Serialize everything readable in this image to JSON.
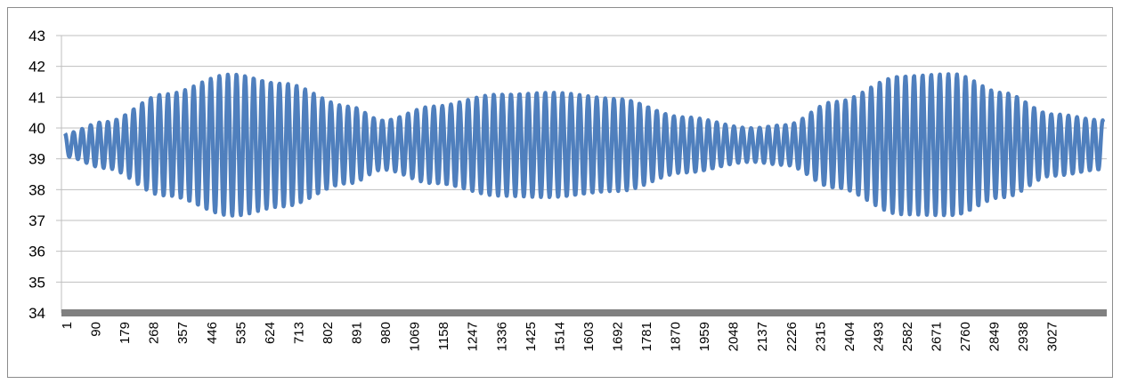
{
  "chart_data": {
    "type": "line",
    "title": "",
    "xlabel": "",
    "ylabel": "",
    "ylim": [
      34,
      43
    ],
    "y_ticks": [
      34,
      35,
      36,
      37,
      38,
      39,
      40,
      41,
      42,
      43
    ],
    "x_range": [
      1,
      3100
    ],
    "x_tick_labels": [
      "1",
      "90",
      "179",
      "268",
      "357",
      "446",
      "535",
      "624",
      "713",
      "802",
      "891",
      "980",
      "1069",
      "1158",
      "1247",
      "1336",
      "1425",
      "1514",
      "1603",
      "1692",
      "1781",
      "1870",
      "1959",
      "2048",
      "2137",
      "2226",
      "2315",
      "2404",
      "2493",
      "2582",
      "2671",
      "2760",
      "2849",
      "2938",
      "3027"
    ],
    "grid": "horizontal",
    "legend": "none",
    "series": [
      {
        "color": "#4f7fbd",
        "signal": {
          "mean": 39.45,
          "cycle_length_x": 25.6,
          "peak_to_peak_envelope": {
            "x": [
              1,
              120,
              300,
              500,
              650,
              850,
              950,
              1100,
              1300,
              1450,
              1650,
              1850,
              2050,
              2150,
              2300,
              2500,
              2650,
              2800,
              2950,
              3100
            ],
            "amplitude": [
              0.75,
              1.5,
              3.3,
              4.6,
              4.0,
              2.5,
              1.6,
              2.5,
              3.3,
              3.4,
              3.0,
              1.8,
              1.1,
              1.3,
              2.8,
              4.5,
              4.6,
              3.4,
              2.0,
              1.6
            ]
          }
        }
      }
    ]
  }
}
